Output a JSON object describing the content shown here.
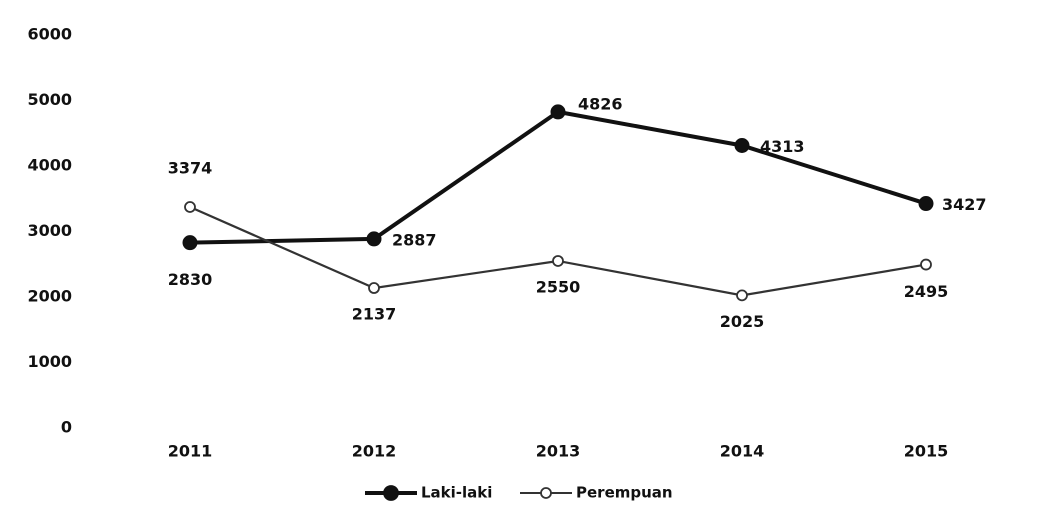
{
  "chart_data": {
    "type": "line",
    "categories": [
      "2011",
      "2012",
      "2013",
      "2014",
      "2015"
    ],
    "series": [
      {
        "name": "Laki-laki",
        "color": "#111111",
        "marker": "filled",
        "values": [
          2830,
          2887,
          4826,
          4313,
          3427
        ]
      },
      {
        "name": "Perempuan",
        "color": "#333333",
        "marker": "open",
        "values": [
          3374,
          2137,
          2550,
          2025,
          2495
        ]
      }
    ],
    "ylim": [
      0,
      6000
    ],
    "yticks": [
      0,
      1000,
      2000,
      3000,
      4000,
      5000,
      6000
    ],
    "grid": false,
    "legend": "bottom"
  }
}
